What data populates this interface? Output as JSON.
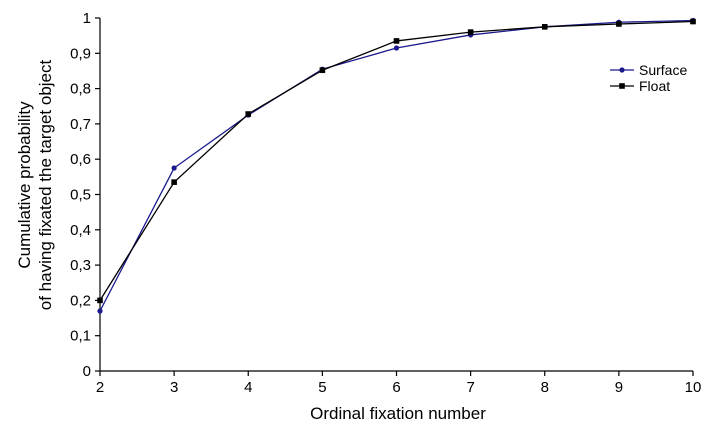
{
  "chart_data": {
    "type": "line",
    "title": "",
    "xlabel": "Ordinal fixation number",
    "ylabel_lines": [
      "Cumulative probability",
      "of having fixated the target object"
    ],
    "x": [
      2,
      3,
      4,
      5,
      6,
      7,
      8,
      9,
      10
    ],
    "xlim": [
      2,
      10
    ],
    "ylim": [
      0,
      1
    ],
    "x_ticks": [
      "2",
      "3",
      "4",
      "5",
      "6",
      "7",
      "8",
      "9",
      "10"
    ],
    "y_ticks": [
      "0",
      "0,1",
      "0,2",
      "0,3",
      "0,4",
      "0,5",
      "0,6",
      "0,7",
      "0,8",
      "0,9",
      "1"
    ],
    "grid": false,
    "legend_position": "top-right",
    "series": [
      {
        "name": "Surface",
        "marker": "circle",
        "color": "#1a1a8c",
        "values": [
          0.17,
          0.575,
          0.725,
          0.855,
          0.915,
          0.952,
          0.975,
          0.988,
          0.993
        ]
      },
      {
        "name": "Float",
        "marker": "square",
        "color": "#000000",
        "values": [
          0.2,
          0.535,
          0.728,
          0.852,
          0.935,
          0.96,
          0.975,
          0.983,
          0.99
        ]
      }
    ]
  }
}
